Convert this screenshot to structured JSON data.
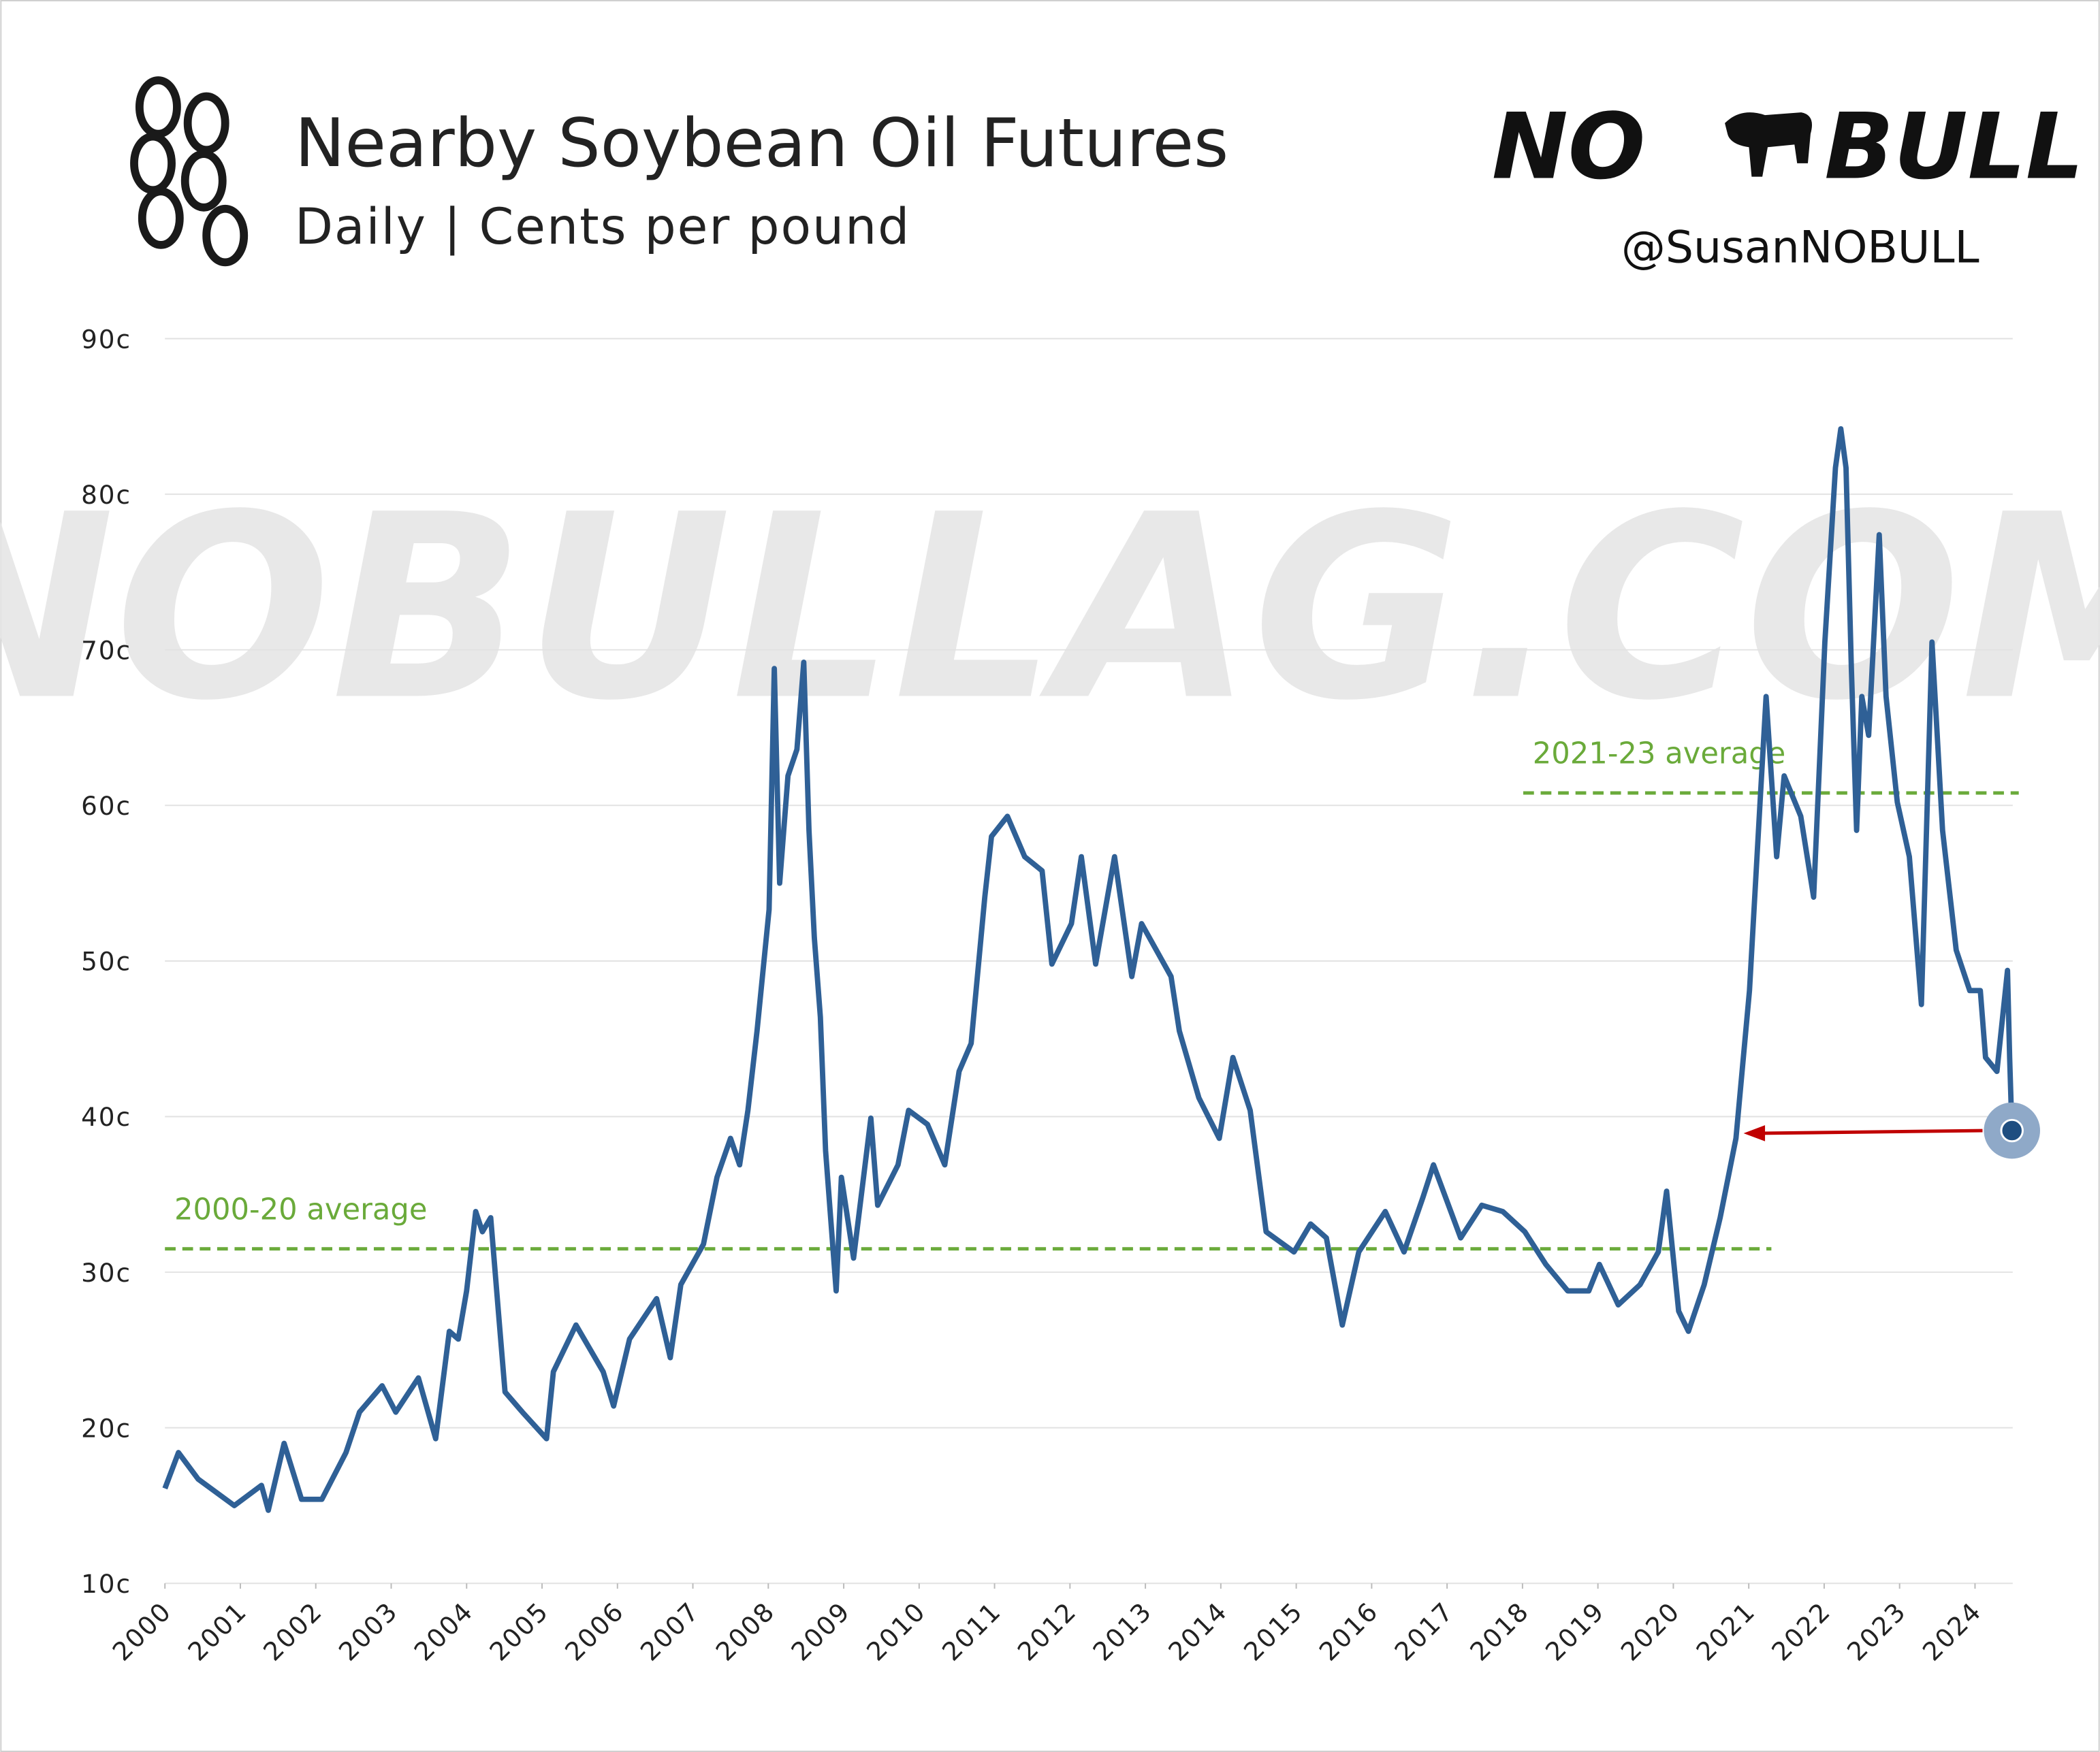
{
  "chart_data": {
    "type": "line",
    "title": "Nearby Soybean Oil Futures",
    "subtitle": "Daily | Cents per pound",
    "brand": "NO BULL",
    "handle": "@SusanNOBULL",
    "watermark": "NOBULLAG.COM",
    "color": "#2f6096",
    "grid": true,
    "xlim": [
      2000,
      2024.5
    ],
    "ylim": [
      10,
      90
    ],
    "xticks": [
      2000,
      2001,
      2002,
      2003,
      2004,
      2005,
      2006,
      2007,
      2008,
      2009,
      2010,
      2011,
      2012,
      2013,
      2014,
      2015,
      2016,
      2017,
      2018,
      2019,
      2020,
      2021,
      2022,
      2023,
      2024
    ],
    "yticks": [
      {
        "value": 10,
        "label": "10c"
      },
      {
        "value": 20,
        "label": "20c"
      },
      {
        "value": 30,
        "label": "30c"
      },
      {
        "value": 40,
        "label": "40c"
      },
      {
        "value": 50,
        "label": "50c"
      },
      {
        "value": 60,
        "label": "60c"
      },
      {
        "value": 70,
        "label": "70c"
      },
      {
        "value": 80,
        "label": "80c"
      },
      {
        "value": 90,
        "label": "90c"
      }
    ],
    "x": [
      2000.0,
      2000.18,
      2000.44,
      2000.92,
      2001.28,
      2001.37,
      2001.58,
      2001.81,
      2002.08,
      2002.4,
      2002.58,
      2002.88,
      2003.06,
      2003.36,
      2003.59,
      2003.77,
      2003.89,
      2004.0,
      2004.12,
      2004.21,
      2004.32,
      2004.42,
      2004.51,
      2004.74,
      2005.06,
      2005.15,
      2005.45,
      2005.81,
      2005.95,
      2006.16,
      2006.52,
      2006.7,
      2006.84,
      2007.14,
      2007.32,
      2007.5,
      2007.62,
      2007.73,
      2007.85,
      2008.01,
      2008.08,
      2008.15,
      2008.26,
      2008.38,
      2008.47,
      2008.54,
      2008.61,
      2008.69,
      2008.76,
      2008.9,
      2008.97,
      2009.13,
      2009.36,
      2009.45,
      2009.72,
      2009.86,
      2010.11,
      2010.34,
      2010.53,
      2010.69,
      2010.87,
      2010.96,
      2011.17,
      2011.4,
      2011.63,
      2011.76,
      2012.02,
      2012.15,
      2012.34,
      2012.59,
      2012.82,
      2012.95,
      2013.34,
      2013.45,
      2013.71,
      2013.98,
      2014.16,
      2014.39,
      2014.6,
      2014.97,
      2015.19,
      2015.4,
      2015.61,
      2015.83,
      2016.18,
      2016.43,
      2016.68,
      2016.82,
      2017.18,
      2017.46,
      2017.74,
      2018.03,
      2018.31,
      2018.6,
      2018.88,
      2019.02,
      2019.27,
      2019.56,
      2019.8,
      2019.91,
      2020.07,
      2020.2,
      2020.41,
      2020.62,
      2020.83,
      2021.01,
      2021.15,
      2021.23,
      2021.37,
      2021.47,
      2021.69,
      2021.86,
      2022.01,
      2022.15,
      2022.22,
      2022.29,
      2022.36,
      2022.43,
      2022.5,
      2022.59,
      2022.73,
      2022.82,
      2022.97,
      2023.13,
      2023.29,
      2023.43,
      2023.57,
      2023.75,
      2023.93,
      2024.07,
      2024.14,
      2024.29,
      2024.43,
      2024.46,
      2024.49
    ],
    "values": [
      16.1,
      18.4,
      16.7,
      15.0,
      16.3,
      14.7,
      19.0,
      15.4,
      15.4,
      18.4,
      21.0,
      22.7,
      21.0,
      23.2,
      19.3,
      26.2,
      25.7,
      28.8,
      33.9,
      32.6,
      33.5,
      27.5,
      22.3,
      21.0,
      19.3,
      23.6,
      26.6,
      23.6,
      21.4,
      25.7,
      28.3,
      24.5,
      29.2,
      31.8,
      36.1,
      38.6,
      36.9,
      40.4,
      45.5,
      53.3,
      68.8,
      55.0,
      61.9,
      63.6,
      69.2,
      58.4,
      51.5,
      46.4,
      37.8,
      28.8,
      36.1,
      30.9,
      39.9,
      34.3,
      36.9,
      40.4,
      39.5,
      36.9,
      42.9,
      44.7,
      54.1,
      58.0,
      59.3,
      56.7,
      55.8,
      49.8,
      52.4,
      56.7,
      49.8,
      56.7,
      49.0,
      52.4,
      49.0,
      45.5,
      41.2,
      38.6,
      43.8,
      40.4,
      32.6,
      31.3,
      33.1,
      32.2,
      26.6,
      31.3,
      33.9,
      31.3,
      34.8,
      36.9,
      32.2,
      34.3,
      33.9,
      32.6,
      30.5,
      28.8,
      28.8,
      30.5,
      27.9,
      29.2,
      31.3,
      35.2,
      27.5,
      26.2,
      29.2,
      33.5,
      38.6,
      48.1,
      60.2,
      67.0,
      56.7,
      61.9,
      59.3,
      54.1,
      70.5,
      81.7,
      84.2,
      81.7,
      68.8,
      58.4,
      67.0,
      64.5,
      77.4,
      67.0,
      60.2,
      56.7,
      47.2,
      70.5,
      58.4,
      50.7,
      48.1,
      48.1,
      43.8,
      42.9,
      49.4,
      43.8,
      39.1
    ],
    "reference_lines": [
      {
        "label": "2000-20 average",
        "value": 31.5,
        "x": [
          2000,
          2021.3
        ],
        "color": "#6aaa3a"
      },
      {
        "label": "2021-23 average",
        "value": 60.8,
        "x": [
          2018.01,
          2024.58
        ],
        "color": "#6aaa3a"
      }
    ]
  }
}
